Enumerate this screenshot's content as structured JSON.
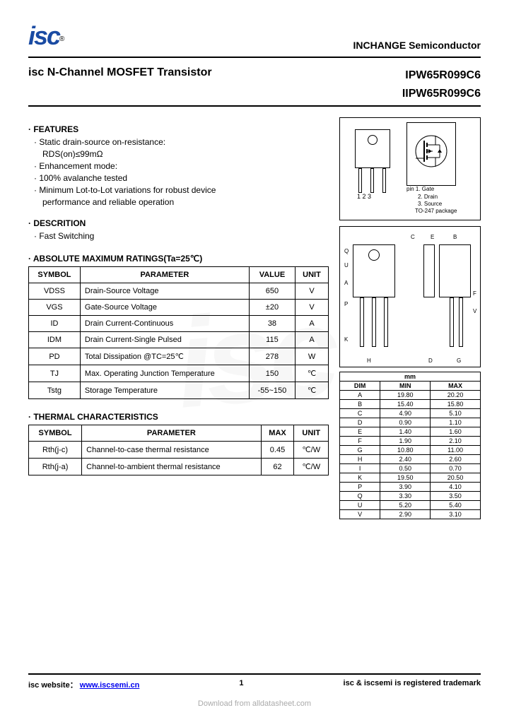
{
  "logo_text": "isc",
  "logo_reg": "®",
  "company": "INCHANGE Semiconductor",
  "main_title": "isc N-Channel MOSFET Transistor",
  "part1": "IPW65R099C6",
  "part2": "IIPW65R099C6",
  "features_title": "· FEATURES",
  "features": [
    "· Static drain-source on-resistance:",
    "RDS(on)≤99mΩ",
    "· Enhancement mode:",
    "· 100% avalanche tested",
    "· Minimum Lot-to-Lot variations for robust device",
    "performance and reliable operation"
  ],
  "desc_title": "· DESCRITION",
  "desc_line": "· Fast Switching",
  "ratings_title": "· ABSOLUTE MAXIMUM RATINGS(Ta=25℃)",
  "ratings_headers": [
    "SYMBOL",
    "PARAMETER",
    "VALUE",
    "UNIT"
  ],
  "ratings_rows": [
    [
      "VDSS",
      "Drain-Source Voltage",
      "650",
      "V"
    ],
    [
      "VGS",
      "Gate-Source Voltage",
      "±20",
      "V"
    ],
    [
      "ID",
      "Drain Current-Continuous",
      "38",
      "A"
    ],
    [
      "IDM",
      "Drain Current-Single Pulsed",
      "115",
      "A"
    ],
    [
      "PD",
      "Total Dissipation @TC=25℃",
      "278",
      "W"
    ],
    [
      "TJ",
      "Max. Operating Junction Temperature",
      "150",
      "℃"
    ],
    [
      "Tstg",
      "Storage Temperature",
      "-55~150",
      "℃"
    ]
  ],
  "thermal_title": "· THERMAL CHARACTERISTICS",
  "thermal_headers": [
    "SYMBOL",
    "PARAMETER",
    "MAX",
    "UNIT"
  ],
  "thermal_rows": [
    [
      "Rth(j-c)",
      "Channel-to-case thermal resistance",
      "0.45",
      "℃/W"
    ],
    [
      "Rth(j-a)",
      "Channel-to-ambient thermal resistance",
      "62",
      "℃/W"
    ]
  ],
  "pin_labels": "1  2  3",
  "pin_legend": [
    "pin 1. Gate",
    "2. Drain",
    "3. Source",
    "TO-247 package"
  ],
  "dim_title": "mm",
  "dim_headers": [
    "DIM",
    "MIN",
    "MAX"
  ],
  "dim_rows": [
    [
      "A",
      "19.80",
      "20.20"
    ],
    [
      "B",
      "15.40",
      "15.80"
    ],
    [
      "C",
      "4.90",
      "5.10"
    ],
    [
      "D",
      "0.90",
      "1.10"
    ],
    [
      "E",
      "1.40",
      "1.60"
    ],
    [
      "F",
      "1.90",
      "2.10"
    ],
    [
      "G",
      "10.80",
      "11.00"
    ],
    [
      "H",
      "2.40",
      "2.60"
    ],
    [
      "I",
      "0.50",
      "0.70"
    ],
    [
      "K",
      "19.50",
      "20.50"
    ],
    [
      "P",
      "3.90",
      "4.10"
    ],
    [
      "Q",
      "3.30",
      "3.50"
    ],
    [
      "U",
      "5.20",
      "5.40"
    ],
    [
      "V",
      "2.90",
      "3.10"
    ]
  ],
  "footer_website_label": "isc website：",
  "footer_website_url": "www.iscsemi.cn",
  "footer_page": "1",
  "footer_trademark": "isc & iscsemi is registered trademark",
  "download_text": "Download from alldatasheet.com",
  "watermark": "isc"
}
